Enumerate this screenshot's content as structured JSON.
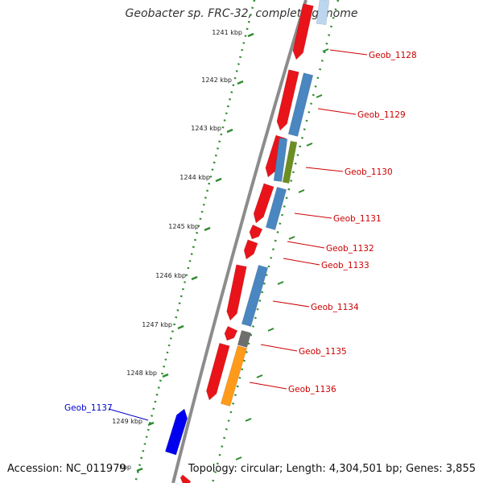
{
  "title": "Geobacter sp. FRC-32, complete genome",
  "footer": {
    "accession": "Accession: NC_011979",
    "topology": "Topology: circular; Length: 4,304,501 bp; Genes: 3,855"
  },
  "ticks": [
    {
      "label": "1241 kbp"
    },
    {
      "label": "1242 kbp"
    },
    {
      "label": "1243 kbp"
    },
    {
      "label": "1244 kbp"
    },
    {
      "label": "1245 kbp"
    },
    {
      "label": "1246 kbp"
    },
    {
      "label": "1247 kbp"
    },
    {
      "label": "1248 kbp"
    },
    {
      "label": "1249 kbp"
    },
    {
      "label": "kbp"
    }
  ],
  "colors": {
    "backbone": "#8c8c8c",
    "tick": "#2e8b2e",
    "cds": "#e8141a",
    "blue_feature": "#4a86c0",
    "green_feature": "#6b8e23",
    "gray_feature": "#6e6e6e",
    "orange_feature": "#ff9a1a",
    "reverse_gene": "#0000ee",
    "label_red": "#cc0000",
    "label_blue": "#0000cc"
  },
  "gene_labels": [
    {
      "text": "Geob_1128",
      "color": "label_red"
    },
    {
      "text": "Geob_1129",
      "color": "label_red"
    },
    {
      "text": "Geob_1130",
      "color": "label_red"
    },
    {
      "text": "Geob_1131",
      "color": "label_red"
    },
    {
      "text": "Geob_1132",
      "color": "label_red"
    },
    {
      "text": "Geob_1133",
      "color": "label_red"
    },
    {
      "text": "Geob_1134",
      "color": "label_red"
    },
    {
      "text": "Geob_1135",
      "color": "label_red"
    },
    {
      "text": "Geob_1136",
      "color": "label_red"
    },
    {
      "text": "Geob_1137",
      "color": "label_blue"
    }
  ]
}
